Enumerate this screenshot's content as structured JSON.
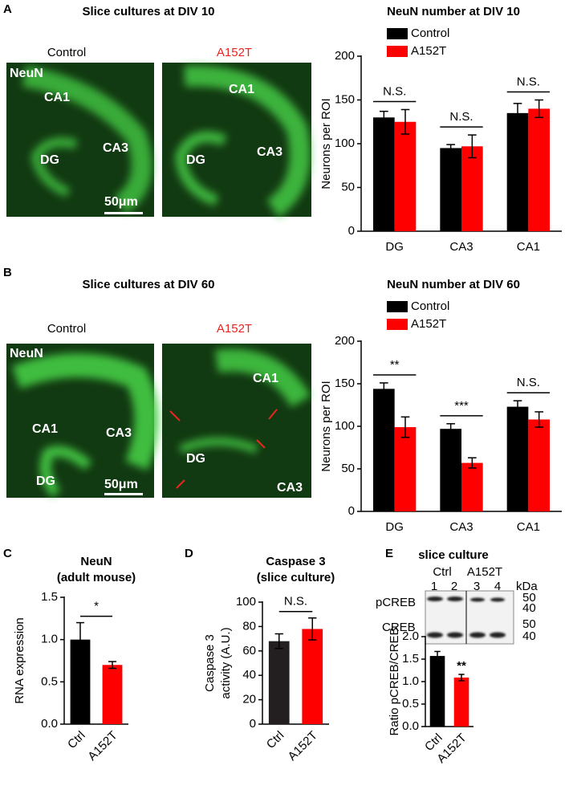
{
  "panel_labels": [
    "A",
    "B",
    "C",
    "D",
    "E"
  ],
  "images": [
    {
      "title": "Slice cultures at DIV 10",
      "left": "Control",
      "right": "A152T",
      "left_labels": [
        "NeuN",
        "CA1",
        "DG",
        "CA3",
        "50μm"
      ],
      "right_labels": [
        "CA1",
        "DG",
        "CA3"
      ]
    },
    {
      "title": "Slice cultures at DIV 60",
      "left": "Control",
      "right": "A152T",
      "left_labels": [
        "NeuN",
        "CA1",
        "CA3",
        "DG",
        "50μm"
      ],
      "right_labels": [
        "CA1",
        "DG",
        "CA3"
      ]
    }
  ],
  "blot": {
    "title": "slice culture",
    "groups": [
      "Ctrl",
      "A152T"
    ],
    "lanes": [
      "1",
      "2",
      "3",
      "4"
    ],
    "unit": "kDa",
    "rows": [
      "pCREB",
      "CREB"
    ],
    "markers": [
      "50",
      "40",
      "50",
      "40"
    ]
  },
  "chart_data": [
    {
      "type": "bar",
      "title": "NeuN number at DIV 10",
      "y_label": [
        "Neurons per ROI"
      ],
      "categories": [
        "DG",
        "CA3",
        "CA1"
      ],
      "series": [
        {
          "name": "Control",
          "color": "#000000",
          "values": [
            130,
            95,
            135
          ],
          "errors": [
            7,
            4,
            11
          ]
        },
        {
          "name": "A152T",
          "color": "#ff0000",
          "values": [
            125,
            97,
            140
          ],
          "errors": [
            14,
            13,
            10
          ]
        }
      ],
      "annotations": [
        "N.S.",
        "N.S.",
        "N.S."
      ],
      "ylim": [
        0,
        200
      ],
      "yticks": [
        0,
        50,
        100,
        150,
        200
      ]
    },
    {
      "type": "bar",
      "title": "NeuN number at DIV 60",
      "y_label": [
        "Neurons per ROI"
      ],
      "categories": [
        "DG",
        "CA3",
        "CA1"
      ],
      "series": [
        {
          "name": "Control",
          "color": "#000000",
          "values": [
            144,
            97,
            123
          ],
          "errors": [
            7,
            6,
            7
          ]
        },
        {
          "name": "A152T",
          "color": "#ff0000",
          "values": [
            99,
            57,
            108
          ],
          "errors": [
            12,
            6,
            9
          ]
        }
      ],
      "annotations": [
        "**",
        "***",
        "N.S."
      ],
      "ylim": [
        0,
        200
      ],
      "yticks": [
        0,
        50,
        100,
        150,
        200
      ]
    },
    {
      "type": "bar",
      "title": "NeuN",
      "subtitle": "(adult mouse)",
      "y_label": [
        "RNA expression"
      ],
      "categories": [
        "Ctrl",
        "A152T"
      ],
      "values": [
        1.0,
        0.7
      ],
      "errors": [
        0.2,
        0.04
      ],
      "colors": [
        "#000000",
        "#ff0000"
      ],
      "annotation": "*",
      "annotation_line": true,
      "xtick_rotation": 45,
      "ylim": [
        0,
        1.5
      ],
      "yticks": [
        {
          "value": 0,
          "label": "0.0"
        },
        {
          "value": 0.5,
          "label": "0.5"
        },
        {
          "value": 1,
          "label": "1.0"
        },
        {
          "value": 1.5,
          "label": "1.5"
        }
      ]
    },
    {
      "type": "bar",
      "title": "Caspase 3",
      "subtitle": "(slice culture)",
      "y_label": [
        "Caspase 3",
        "activity (A.U.)"
      ],
      "categories": [
        "Ctrl",
        "A152T"
      ],
      "values": [
        68,
        78
      ],
      "errors": [
        6,
        9
      ],
      "colors": [
        "#231f20",
        "#ff0000"
      ],
      "annotation": "N.S.",
      "annotation_line": true,
      "xtick_rotation": 45,
      "ylim": [
        0,
        100
      ],
      "yticks": [
        0,
        20,
        40,
        60,
        80,
        100
      ]
    },
    {
      "type": "bar",
      "y_label": [
        "Ratio pCREB/CREB"
      ],
      "categories": [
        "Ctrl",
        "A152T"
      ],
      "values": [
        1.57,
        1.09
      ],
      "errors": [
        0.1,
        0.07
      ],
      "colors": [
        "#000000",
        "#ff0000"
      ],
      "annotation": "**",
      "annotation_line": false,
      "xtick_rotation": 45,
      "ylim": [
        0,
        2
      ],
      "yticks": [
        {
          "value": 0,
          "label": "0.0"
        },
        {
          "value": 0.5,
          "label": "0.5"
        },
        {
          "value": 1,
          "label": "1.0"
        },
        {
          "value": 1.5,
          "label": "1.5"
        },
        {
          "value": 2,
          "label": "2.0"
        }
      ]
    }
  ]
}
